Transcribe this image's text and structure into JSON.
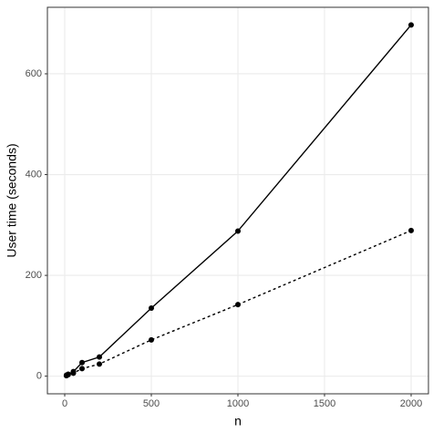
{
  "chart_data": {
    "type": "line",
    "x_label": "n",
    "y_label": "User time (seconds)",
    "x": [
      10,
      20,
      50,
      100,
      200,
      500,
      1000,
      2000
    ],
    "series": [
      {
        "color": "#000000",
        "linestyle": "solid",
        "values": [
          2,
          4,
          9,
          27,
          38,
          135,
          288,
          697
        ]
      },
      {
        "color": "#000000",
        "linestyle": "dashed",
        "values": [
          1,
          3,
          6,
          15,
          24,
          72,
          142,
          289
        ]
      }
    ],
    "xlim": [
      -100,
      2100
    ],
    "xticks": [
      0,
      500,
      1000,
      1500,
      2000
    ],
    "ylim": [
      -35,
      732
    ],
    "yticks": [
      0,
      200,
      400,
      600
    ],
    "grid": true,
    "markers": true
  }
}
